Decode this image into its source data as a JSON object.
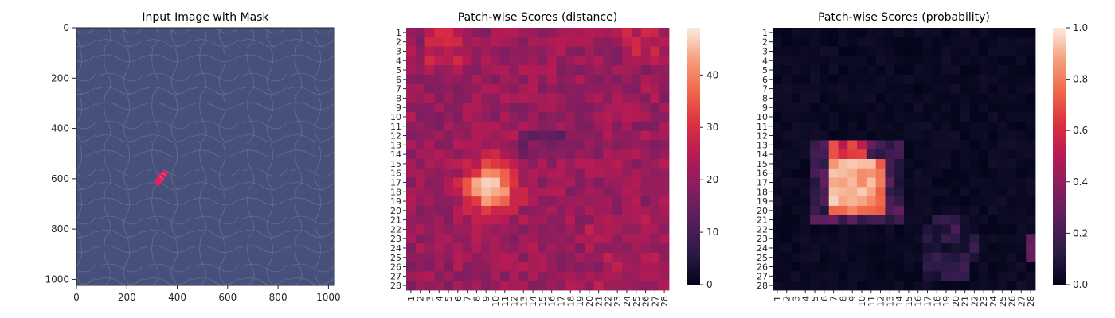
{
  "chart_data": [
    {
      "type": "image",
      "title": "Input Image with Mask",
      "x_ticks": [
        "0",
        "200",
        "400",
        "600",
        "800",
        "1000"
      ],
      "y_ticks": [
        "0",
        "200",
        "400",
        "600",
        "800",
        "1000"
      ],
      "xlim": [
        0,
        1024
      ],
      "ylim": [
        1024,
        0
      ],
      "image_color": "#47507a",
      "mask_color": "#d8265d",
      "mask_region": {
        "x_center": 330,
        "y_center": 605
      }
    },
    {
      "type": "heatmap",
      "title": "Patch-wise Scores (distance)",
      "x_tick_labels": [
        "1",
        "2",
        "3",
        "4",
        "5",
        "6",
        "7",
        "8",
        "9",
        "10",
        "11",
        "12",
        "13",
        "14",
        "15",
        "16",
        "17",
        "18",
        "19",
        "20",
        "21",
        "22",
        "23",
        "24",
        "25",
        "26",
        "27",
        "28"
      ],
      "y_tick_labels": [
        "1",
        "2",
        "3",
        "4",
        "5",
        "6",
        "7",
        "8",
        "9",
        "10",
        "11",
        "12",
        "13",
        "14",
        "15",
        "16",
        "17",
        "18",
        "19",
        "20",
        "21",
        "22",
        "23",
        "24",
        "25",
        "26",
        "27",
        "28"
      ],
      "colorbar_ticks": [
        "0",
        "10",
        "20",
        "30",
        "40"
      ],
      "value_range": [
        0,
        49
      ],
      "colormap": "rocket",
      "base_value": 21,
      "hotspot": {
        "row": 17.5,
        "col": 9.5,
        "peak": 49
      },
      "values": []
    },
    {
      "type": "heatmap",
      "title": "Patch-wise Scores (probability)",
      "x_tick_labels": [
        "1",
        "2",
        "3",
        "4",
        "5",
        "6",
        "7",
        "8",
        "9",
        "10",
        "11",
        "12",
        "13",
        "14",
        "15",
        "16",
        "17",
        "18",
        "19",
        "20",
        "21",
        "22",
        "23",
        "24",
        "25",
        "26",
        "27",
        "28"
      ],
      "y_tick_labels": [
        "1",
        "2",
        "3",
        "4",
        "5",
        "6",
        "7",
        "8",
        "9",
        "10",
        "11",
        "12",
        "13",
        "14",
        "15",
        "16",
        "17",
        "18",
        "19",
        "20",
        "21",
        "22",
        "23",
        "24",
        "25",
        "26",
        "27",
        "28"
      ],
      "colorbar_ticks": [
        "0.0",
        "0.2",
        "0.4",
        "0.6",
        "0.8",
        "1.0"
      ],
      "value_range": [
        0,
        1
      ],
      "colormap": "rocket",
      "hotspot": {
        "rows": [
          15,
          20
        ],
        "cols": [
          7,
          12
        ],
        "peak": 0.96
      },
      "values": []
    }
  ]
}
